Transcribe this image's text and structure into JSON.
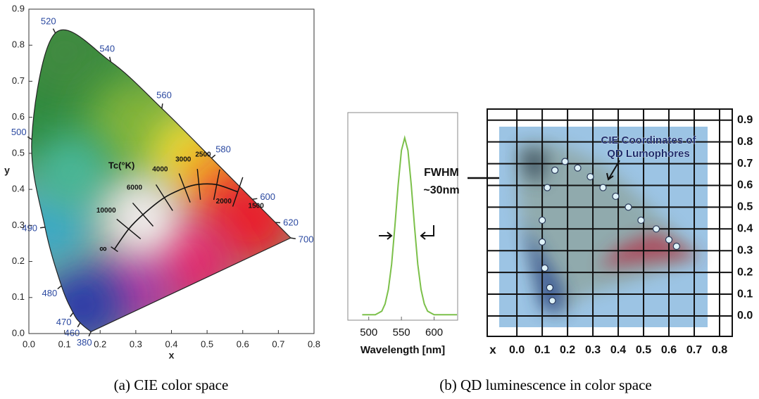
{
  "chart_data": [
    {
      "type": "cie",
      "xlabel": "x",
      "ylabel": "y",
      "xlim": [
        0,
        0.8
      ],
      "ylim": [
        0,
        0.9
      ],
      "xticks": [
        {
          "value": 0,
          "label": "0.0"
        },
        0.1,
        0.2,
        0.3,
        0.4,
        0.5,
        0.6,
        0.7,
        0.8
      ],
      "yticks": [
        {
          "value": 0,
          "label": "0.0"
        },
        0.1,
        0.2,
        0.3,
        0.4,
        0.5,
        0.6,
        0.7,
        0.8,
        0.9
      ],
      "locus": {
        "wavelengths": [
          380,
          460,
          470,
          480,
          490,
          500,
          520,
          540,
          560,
          580,
          600,
          620,
          700
        ],
        "x": [
          0.1741,
          0.144,
          0.1241,
          0.0913,
          0.0454,
          0.0082,
          0.0743,
          0.2296,
          0.3731,
          0.5125,
          0.627,
          0.6915,
          0.7347
        ],
        "y": [
          0.005,
          0.0297,
          0.0578,
          0.1327,
          0.295,
          0.5384,
          0.8338,
          0.7543,
          0.6245,
          0.4866,
          0.3725,
          0.3083,
          0.2653
        ]
      },
      "annotation": "Tc(°K)",
      "planckian": {
        "labels": [
          "∞",
          "10000",
          "6000",
          "4000",
          "3000",
          "2500",
          "2000",
          "1500"
        ],
        "x": [
          0.24,
          0.28,
          0.32,
          0.38,
          0.437,
          0.477,
          0.527,
          0.586
        ],
        "y": [
          0.234,
          0.29,
          0.33,
          0.377,
          0.404,
          0.414,
          0.413,
          0.393
        ]
      }
    },
    {
      "type": "line",
      "xlabel": "Wavelength [nm]",
      "xlim": [
        468,
        636
      ],
      "ylim": [
        -0.01,
        1.14
      ],
      "xticks": [
        500,
        550,
        600
      ],
      "annotation": [
        "FWHM",
        "~30nm"
      ],
      "color": "#7cc04a",
      "x": [
        490,
        495,
        500,
        505,
        510,
        515,
        520,
        525,
        530,
        535,
        540,
        545,
        550,
        555,
        560,
        565,
        570,
        575,
        580,
        585,
        590,
        595,
        600,
        605,
        610,
        615,
        620,
        625,
        630,
        635
      ],
      "values": [
        0.02,
        0.02,
        0.02,
        0.02,
        0.02,
        0.03,
        0.04,
        0.08,
        0.16,
        0.3,
        0.51,
        0.74,
        0.93,
        1.0,
        0.93,
        0.74,
        0.51,
        0.3,
        0.16,
        0.08,
        0.04,
        0.03,
        0.02,
        0.02,
        0.02,
        0.02,
        0.02,
        0.02,
        0.02,
        0.02
      ]
    },
    {
      "type": "scatter",
      "xlabel": "x",
      "xlim": [
        -0.117,
        0.85
      ],
      "ylim": [
        -0.094,
        0.951
      ],
      "xticks": [
        {
          "value": 0,
          "label": "0.0"
        },
        0.1,
        0.2,
        0.3,
        0.4,
        0.5,
        0.6,
        0.7,
        0.8
      ],
      "yticks": [
        {
          "value": 0,
          "label": "0.0"
        },
        0.1,
        0.2,
        0.3,
        0.4,
        0.5,
        0.6,
        0.7,
        0.8,
        0.9
      ],
      "grid": true,
      "annotation": [
        "CIE Coordinates of",
        "QD Lumophores"
      ],
      "x": [
        0.15,
        0.19,
        0.24,
        0.29,
        0.34,
        0.39,
        0.44,
        0.49,
        0.55,
        0.6,
        0.63,
        0.12,
        0.1,
        0.1,
        0.11,
        0.13,
        0.14
      ],
      "values": [
        0.67,
        0.71,
        0.68,
        0.64,
        0.59,
        0.55,
        0.5,
        0.44,
        0.4,
        0.35,
        0.32,
        0.59,
        0.44,
        0.34,
        0.22,
        0.13,
        0.07
      ]
    }
  ],
  "captions": {
    "a": "(a) CIE color space",
    "b": "(b) QD luminescence in color space"
  }
}
